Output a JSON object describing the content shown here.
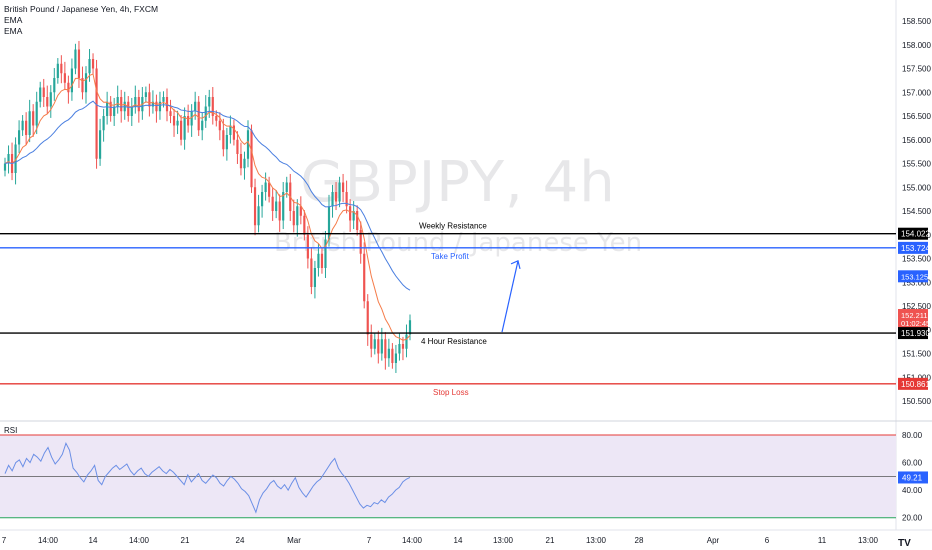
{
  "legend": {
    "title": "British Pound / Japanese Yen, 4h, FXCM",
    "indicator1": "EMA",
    "indicator2": "EMA"
  },
  "watermark": {
    "symbol": "GBPJPY, 4h",
    "name": "British Pound / Japanese Yen"
  },
  "colors": {
    "bull": "#26a69a",
    "bear": "#ef5350",
    "ema_fast": "#f57c4a",
    "ema_slow": "#4a7fe0",
    "rsi_line": "#6b8fe6",
    "resistance": "#000000",
    "take_profit": "#2962ff",
    "stop_loss": "#e53935",
    "rsi_band": "#ede7f6",
    "rsi_upper": "#e53935",
    "rsi_lower": "#26a65b"
  },
  "chart_data": {
    "type": "candlestick",
    "symbol": "GBPJPY",
    "timeframe": "4h",
    "ylim": [
      150.1,
      158.9
    ],
    "y_ticks": [
      "150.500",
      "151.000",
      "151.500",
      "152.000",
      "152.500",
      "153.000",
      "153.500",
      "154.000",
      "154.500",
      "155.000",
      "155.500",
      "156.000",
      "156.500",
      "157.000",
      "157.500",
      "158.000",
      "158.500"
    ],
    "x_ticks": [
      "7",
      "14:00",
      "14",
      "14:00",
      "21",
      "24",
      "Mar",
      "7",
      "14:00",
      "14",
      "13:00",
      "21",
      "13:00",
      "28",
      "Apr",
      "6",
      "11",
      "13:00"
    ],
    "price_levels": [
      {
        "label": "Weekly Resistance",
        "price": 154.022,
        "tag": "154.022",
        "color": "#000000"
      },
      {
        "label": "Take Profit",
        "price": 153.724,
        "tag": "153.724",
        "color": "#2962ff"
      },
      {
        "label": "4 Hour Resistance",
        "price": 151.93,
        "tag": "151.930",
        "color": "#000000"
      },
      {
        "label": "Stop Loss",
        "price": 150.861,
        "tag": "150.861",
        "color": "#e53935"
      }
    ],
    "price_tags": [
      {
        "price": 153.125,
        "tag": "153.125",
        "color": "#2962ff"
      },
      {
        "price": 152.14,
        "tag": "01:02:45",
        "color": "#ef5350"
      },
      {
        "price": 152.31,
        "tag": "152.211",
        "color": "#ef5350"
      }
    ],
    "candles_close": [
      155.5,
      155.7,
      155.3,
      155.9,
      156.2,
      156.4,
      156.1,
      156.6,
      156.3,
      156.8,
      157.1,
      156.9,
      156.7,
      157.0,
      157.3,
      157.6,
      157.4,
      157.2,
      157.0,
      157.5,
      157.9,
      157.3,
      157.0,
      157.4,
      157.7,
      157.5,
      155.6,
      156.2,
      156.5,
      156.8,
      156.5,
      156.7,
      156.9,
      156.6,
      156.8,
      156.5,
      156.7,
      156.9,
      156.6,
      156.9,
      157.0,
      156.7,
      156.8,
      156.6,
      156.8,
      156.9,
      156.6,
      156.5,
      156.3,
      156.4,
      156.0,
      156.5,
      156.3,
      156.6,
      156.8,
      156.2,
      156.4,
      156.7,
      156.9,
      156.5,
      156.4,
      156.2,
      155.8,
      156.1,
      156.3,
      156.0,
      155.7,
      155.4,
      155.6,
      156.2,
      155.0,
      154.2,
      154.6,
      154.9,
      155.1,
      154.8,
      154.5,
      154.7,
      154.3,
      154.9,
      155.1,
      154.5,
      154.2,
      154.6,
      154.4,
      154.0,
      153.5,
      152.9,
      153.3,
      153.6,
      153.3,
      153.9,
      154.6,
      154.9,
      154.7,
      155.1,
      154.9,
      154.6,
      154.3,
      154.5,
      154.1,
      153.6,
      152.6,
      151.9,
      151.6,
      151.8,
      151.5,
      151.8,
      151.4,
      151.6,
      151.3,
      151.5,
      151.7,
      151.6,
      151.9,
      152.2
    ],
    "ema_fast_range": [
      155.9,
      152.2
    ],
    "ema_slow_range": [
      155.4,
      153.1
    ],
    "rsi": {
      "label": "RSI",
      "ylim": [
        14,
        88
      ],
      "levels": [
        80,
        20
      ],
      "mid": 50,
      "y_ticks": [
        "80.00",
        "60.00",
        "40.00",
        "20.00"
      ],
      "current": 49.21,
      "current_tag": "49.21",
      "values": [
        52,
        58,
        54,
        60,
        62,
        57,
        63,
        60,
        66,
        64,
        61,
        67,
        71,
        64,
        59,
        62,
        66,
        74,
        69,
        56,
        53,
        49,
        46,
        51,
        54,
        58,
        47,
        44,
        50,
        53,
        56,
        58,
        55,
        57,
        59,
        54,
        51,
        54,
        56,
        52,
        50,
        53,
        55,
        57,
        54,
        52,
        55,
        53,
        50,
        47,
        44,
        51,
        46,
        49,
        52,
        47,
        45,
        48,
        51,
        49,
        45,
        43,
        47,
        50,
        48,
        45,
        41,
        39,
        36,
        30,
        24,
        33,
        38,
        41,
        45,
        47,
        43,
        41,
        44,
        40,
        45,
        49,
        42,
        38,
        35,
        39,
        43,
        46,
        48,
        52,
        56,
        60,
        63,
        56,
        52,
        49,
        45,
        40,
        35,
        30,
        27,
        29,
        28,
        31,
        30,
        33,
        31,
        35,
        37,
        40,
        42,
        46,
        48,
        49.21
      ]
    }
  },
  "tradingview_logo": "TV"
}
